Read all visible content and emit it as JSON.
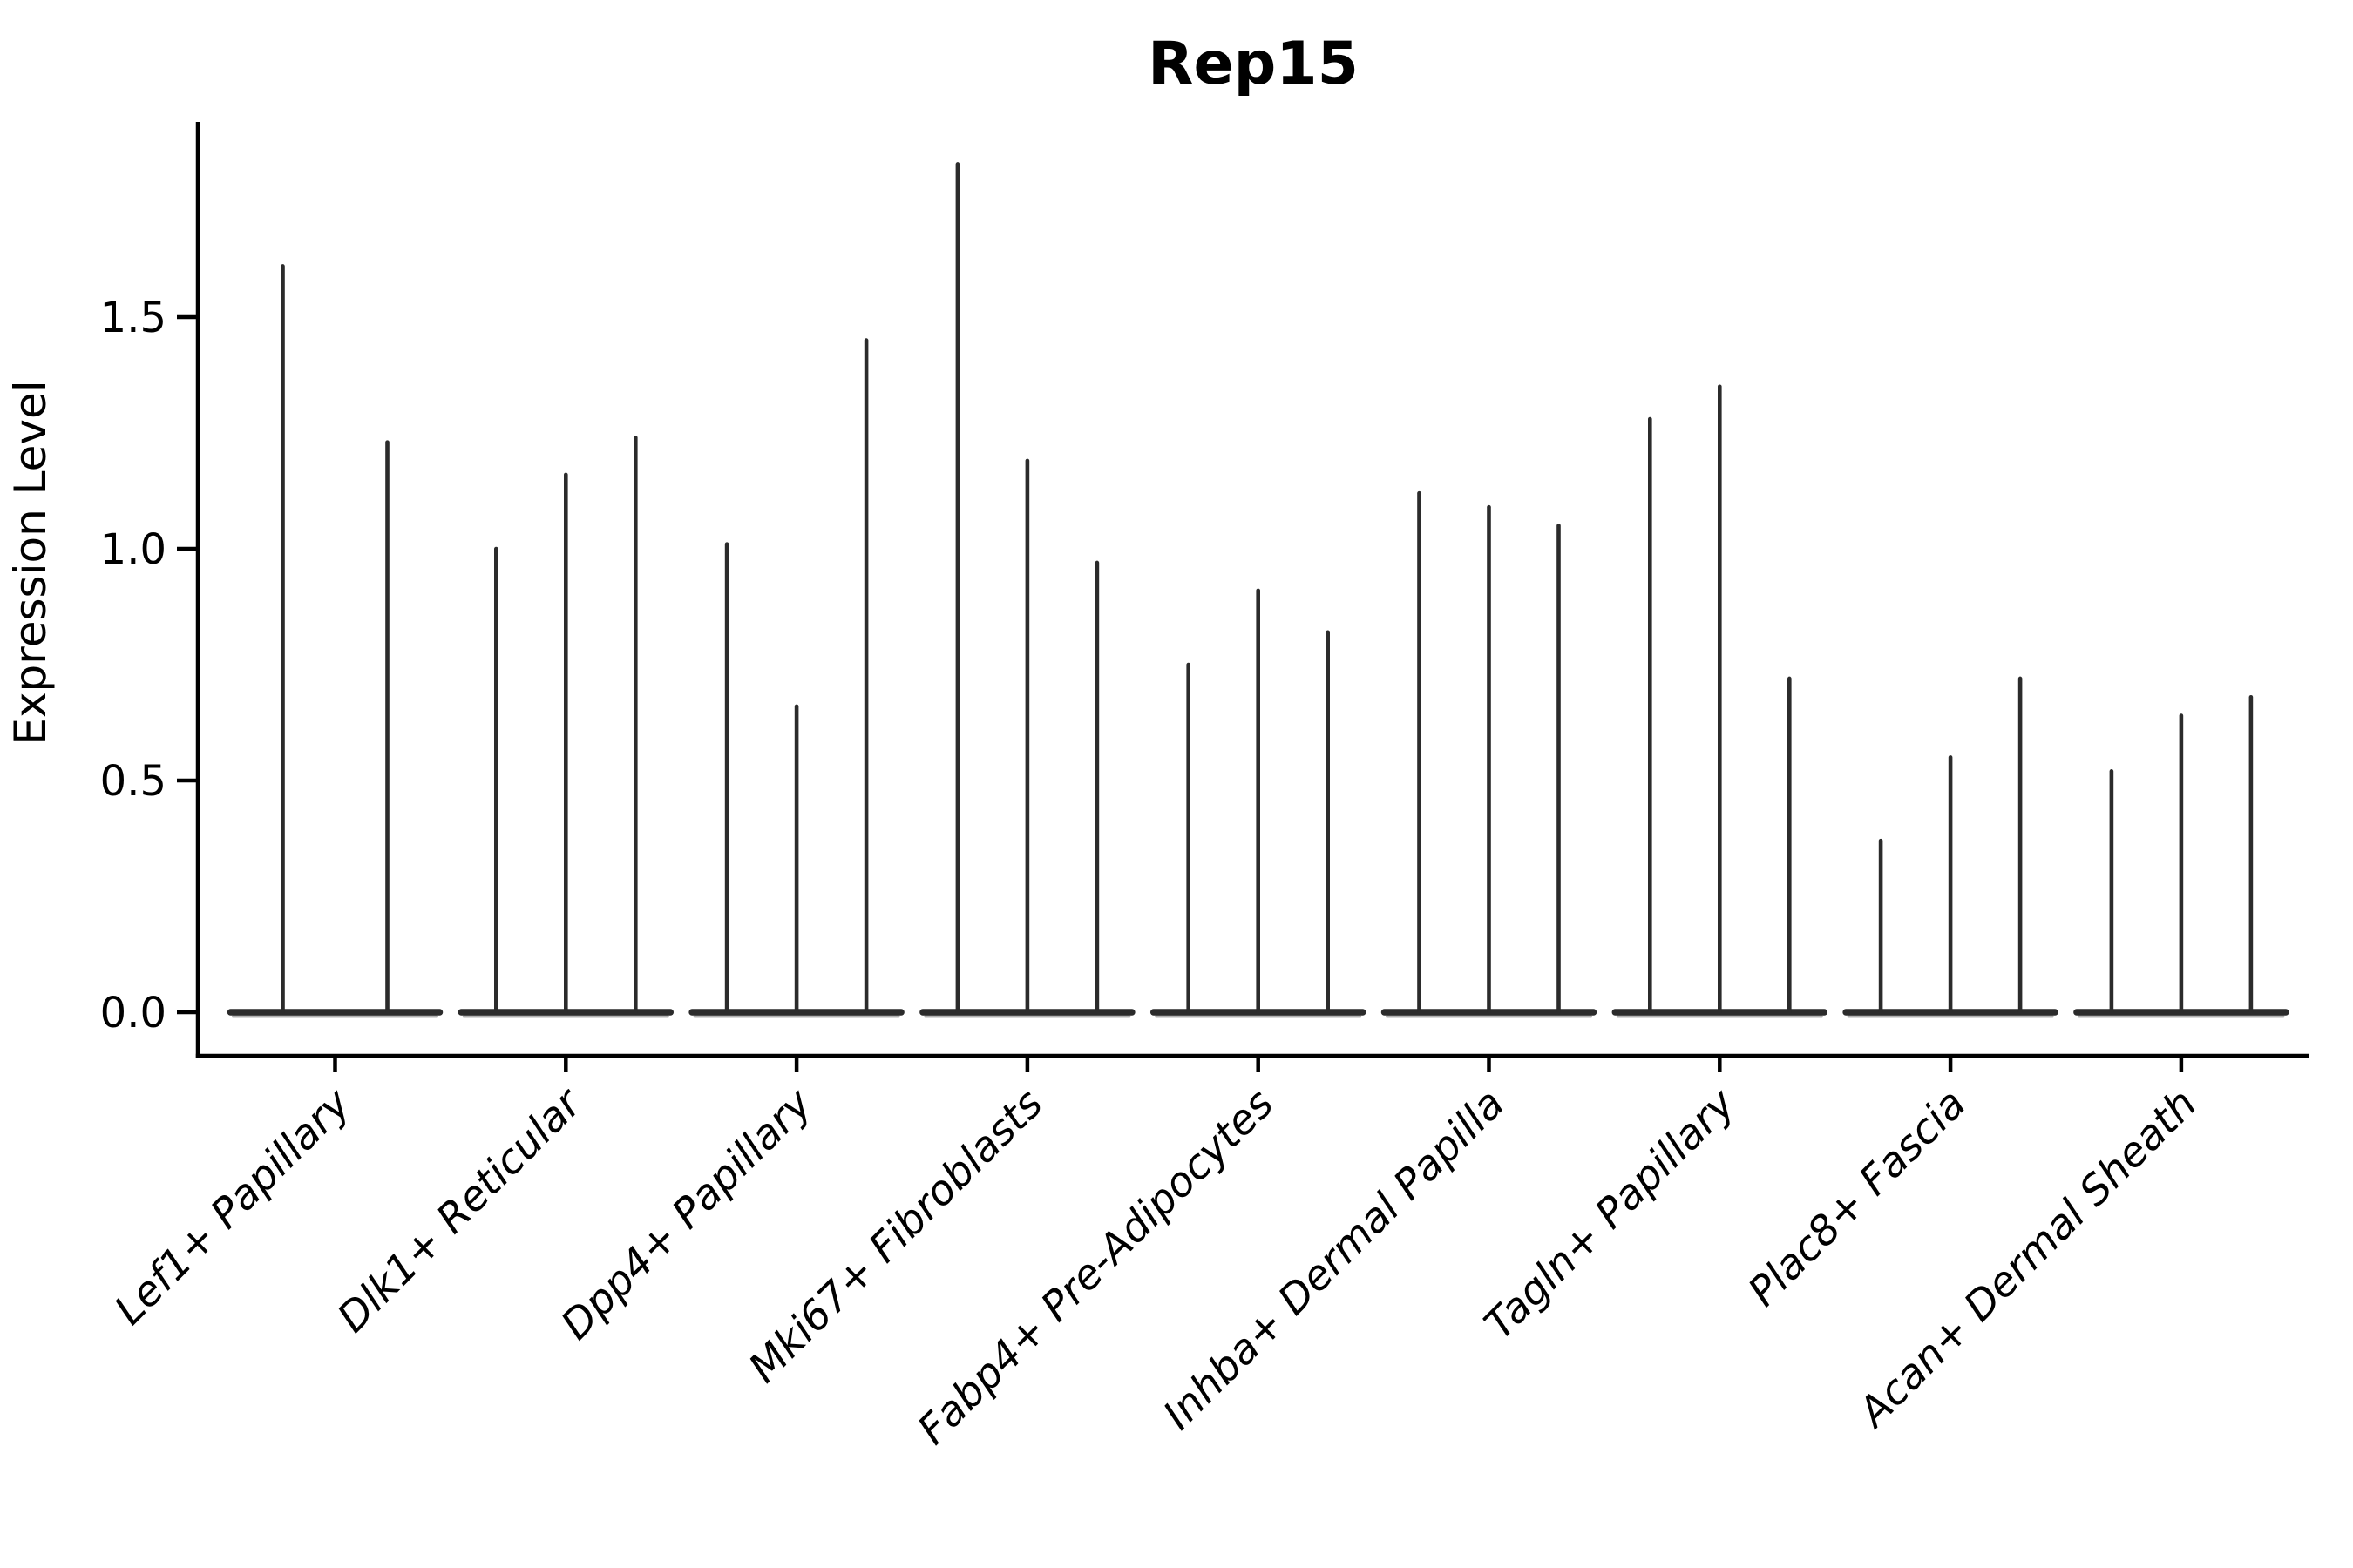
{
  "chart_data": {
    "type": "violin",
    "title": "Rep15",
    "ylabel": "Expression Level",
    "xlabel": "",
    "ytick_labels": [
      "0.0",
      "0.5",
      "1.0",
      "1.5"
    ],
    "ytick_values": [
      0.0,
      0.5,
      1.0,
      1.5
    ],
    "ylim": [
      -0.09,
      1.92
    ],
    "grid": false,
    "legend": "none",
    "categories": [
      "Lef1+ Papillary",
      "Dlk1+ Reticular",
      "Dpp4+ Papillary",
      "Mki67+ Fibroblasts",
      "Fabp4+ Pre-Adipocytes",
      "Inhba+ Dermal Papilla",
      "Tagln+ Papillary",
      "Plac8+ Fascia",
      "Acan+ Dermal Sheath"
    ],
    "groups": [
      {
        "category": "Lef1+ Papillary",
        "violin_max": [
          1.61,
          1.23
        ]
      },
      {
        "category": "Dlk1+ Reticular",
        "violin_max": [
          1.0,
          1.16,
          1.24
        ]
      },
      {
        "category": "Dpp4+ Papillary",
        "violin_max": [
          1.01,
          0.66,
          1.45
        ]
      },
      {
        "category": "Mki67+ Fibroblasts",
        "violin_max": [
          1.83,
          1.19,
          0.97
        ]
      },
      {
        "category": "Fabp4+ Pre-Adipocytes",
        "violin_max": [
          0.75,
          0.91,
          0.82
        ]
      },
      {
        "category": "Inhba+ Dermal Papilla",
        "violin_max": [
          1.12,
          1.09,
          1.05
        ]
      },
      {
        "category": "Tagln+ Papillary",
        "violin_max": [
          1.28,
          1.35,
          0.72
        ]
      },
      {
        "category": "Plac8+ Fascia",
        "violin_max": [
          0.37,
          0.55,
          0.72
        ]
      },
      {
        "category": "Acan+ Dermal Sheath",
        "violin_max": [
          0.52,
          0.64,
          0.68
        ]
      }
    ],
    "violin_baseline_value": 0.0,
    "colors": {
      "violin_line": "#2b2b2b",
      "violin_shadow": "#b0b0b0",
      "axis": "#000000",
      "text": "#000000",
      "background": "#ffffff"
    }
  }
}
